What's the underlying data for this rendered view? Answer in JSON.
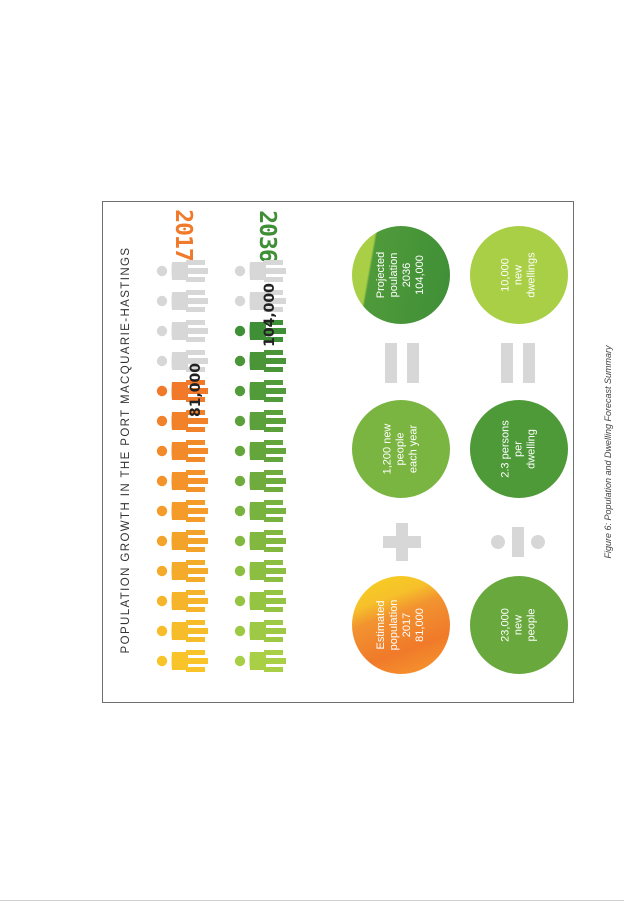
{
  "heading": "POPULATION GROWTH IN THE PORT MACQUARIE-HASTINGS",
  "years": {
    "y2017": "2017",
    "y2036": "2036"
  },
  "row_labels": {
    "pop_2017": "81,000",
    "pop_2036": "104,000"
  },
  "circles": {
    "estimated": [
      "Estimated",
      "population",
      "2017",
      "81,000"
    ],
    "new_people_year": [
      "1,200 new",
      "people",
      "each year"
    ],
    "projected": [
      "Projected",
      "poulation",
      "2036",
      "104,000"
    ],
    "new_people": [
      "23,000",
      "new",
      "people"
    ],
    "persons_per_dwelling": [
      "2.3 persons",
      "per",
      "dwelling"
    ],
    "new_dwellings": [
      "10,000",
      "new",
      "dwellings"
    ]
  },
  "caption": "Figure 6: Population and Dwelling Forecast Summary",
  "colors": {
    "orange": "#f07a2a",
    "yellow": "#f8c42a",
    "light_green": "#a8cf45",
    "mid_green": "#6aaa3b",
    "dark_green": "#3f8f37",
    "grey_figure": "#d7d7d7"
  }
}
